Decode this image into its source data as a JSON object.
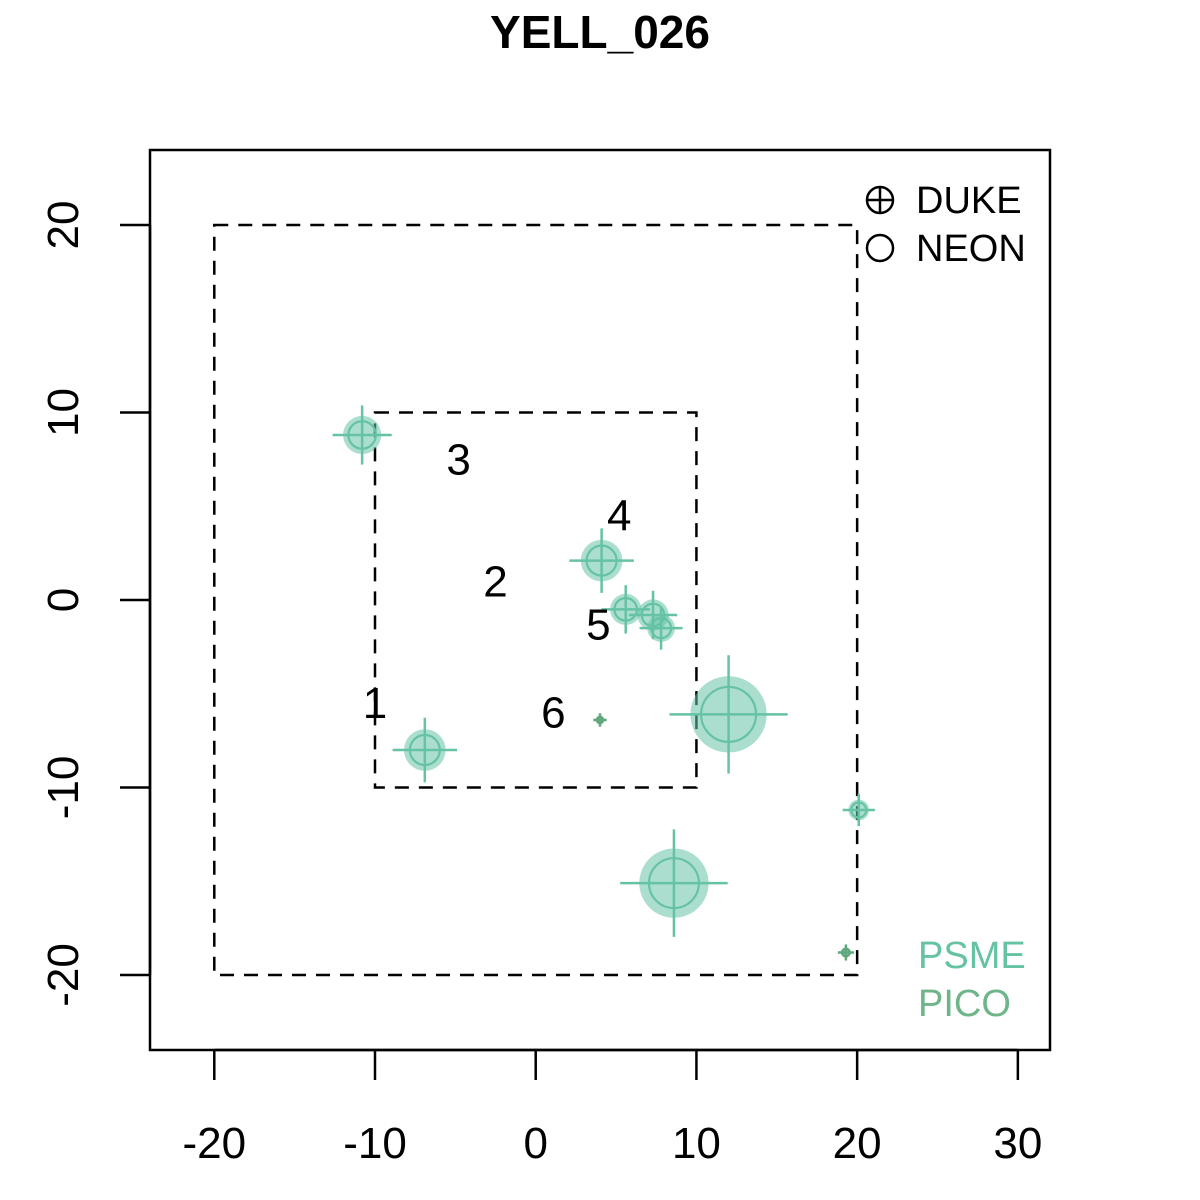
{
  "chart_data": {
    "type": "scatter",
    "title": "YELL_026",
    "xlabel": "",
    "ylabel": "",
    "xlim": [
      -24,
      32
    ],
    "ylim": [
      -24,
      24
    ],
    "xticks": [
      -20,
      -10,
      0,
      10,
      20,
      30
    ],
    "yticks": [
      -20,
      -10,
      0,
      10,
      20
    ],
    "grid": false,
    "legend_position": "top-right",
    "legend": [
      {
        "label": "DUKE",
        "symbol": "circle-plus"
      },
      {
        "label": "NEON",
        "symbol": "open-circle"
      }
    ],
    "species_legend_position": "bottom-right",
    "species_legend": [
      {
        "label": "PSME",
        "color": "#66c2a5"
      },
      {
        "label": "PICO",
        "color": "#6fb58a"
      }
    ],
    "plot_boundaries": [
      {
        "x": [
          -20,
          20
        ],
        "y": [
          -20,
          20
        ],
        "style": "dashed"
      },
      {
        "x": [
          -10,
          10
        ],
        "y": [
          -10,
          10
        ],
        "style": "dashed"
      }
    ],
    "subplot_labels": [
      {
        "label": "1",
        "x": -10,
        "y": -5.5
      },
      {
        "label": "2",
        "x": -2.5,
        "y": 1
      },
      {
        "label": "3",
        "x": -4.8,
        "y": 7.5
      },
      {
        "label": "4",
        "x": 5.2,
        "y": 4.5
      },
      {
        "label": "5",
        "x": 3.9,
        "y": -1.3
      },
      {
        "label": "6",
        "x": 1.1,
        "y": -6
      }
    ],
    "series": [
      {
        "points": [
          {
            "x": -10.8,
            "y": 8.8,
            "size": 1.1,
            "source": "DUKE",
            "color": "#66c2a5"
          },
          {
            "x": 4.1,
            "y": 2.1,
            "size": 1.2,
            "source": "DUKE",
            "color": "#66c2a5"
          },
          {
            "x": 5.6,
            "y": -0.5,
            "size": 0.9,
            "source": "DUKE",
            "color": "#66c2a5"
          },
          {
            "x": 7.3,
            "y": -0.8,
            "size": 0.9,
            "source": "DUKE",
            "color": "#66c2a5"
          },
          {
            "x": 7.8,
            "y": -1.5,
            "size": 0.8,
            "source": "DUKE",
            "color": "#66c2a5"
          },
          {
            "x": 4.0,
            "y": -6.4,
            "size": 0.25,
            "source": "DUKE",
            "color": "#5fa77c"
          },
          {
            "x": -6.9,
            "y": -8.0,
            "size": 1.2,
            "source": "DUKE",
            "color": "#66c2a5"
          },
          {
            "x": 12.0,
            "y": -6.1,
            "size": 2.2,
            "source": "DUKE",
            "color": "#66c2a5"
          },
          {
            "x": 20.1,
            "y": -11.2,
            "size": 0.6,
            "source": "DUKE",
            "color": "#66c2a5"
          },
          {
            "x": 8.6,
            "y": -15.1,
            "size": 2.0,
            "source": "DUKE",
            "color": "#66c2a5"
          },
          {
            "x": 19.3,
            "y": -18.8,
            "size": 0.3,
            "source": "DUKE",
            "color": "#5fa77c"
          }
        ]
      }
    ]
  }
}
